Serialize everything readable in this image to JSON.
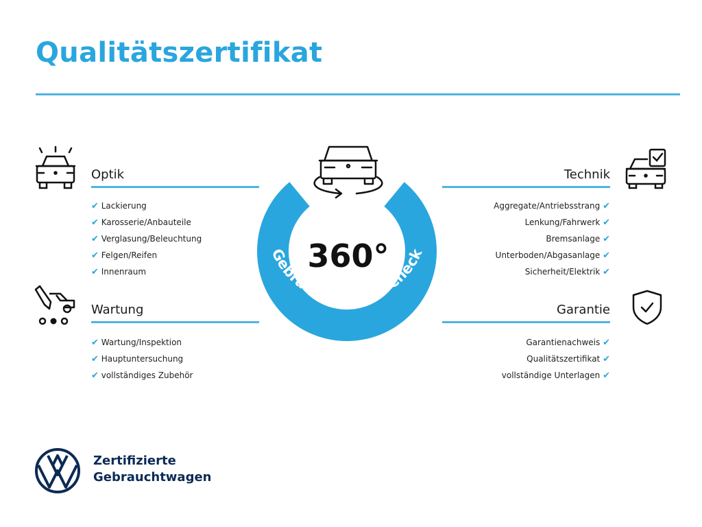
{
  "title": "Qualitätszertifikat",
  "colors": {
    "accent": "#2aa6de",
    "navy": "#0d2a55"
  },
  "center": {
    "number": "360°",
    "ring_text": "Gebrauchtwagen-Check",
    "icon": "car-rotate-icon"
  },
  "sections": {
    "optik": {
      "heading": "Optik",
      "icon": "car-lights-icon",
      "items": [
        "Lackierung",
        "Karosserie/Anbauteile",
        "Verglasung/Beleuchtung",
        "Felgen/Reifen",
        "Innenraum"
      ]
    },
    "wartung": {
      "heading": "Wartung",
      "icon": "service-tools-icon",
      "items": [
        "Wartung/Inspektion",
        "Hauptuntersuchung",
        "vollständiges Zubehör"
      ]
    },
    "technik": {
      "heading": "Technik",
      "icon": "car-checklist-icon",
      "items": [
        "Aggregate/Antriebsstrang",
        "Lenkung/Fahrwerk",
        "Bremsanlage",
        "Unterboden/Abgasanlage",
        "Sicherheit/Elektrik"
      ]
    },
    "garantie": {
      "heading": "Garantie",
      "icon": "shield-check-icon",
      "items": [
        "Garantienachweis",
        "Qualitätszertifikat",
        "vollständige Unterlagen"
      ]
    }
  },
  "check_mark": "✔",
  "footer": {
    "line1": "Zertifizierte",
    "line2": "Gebrauchtwagen",
    "logo": "vw-logo"
  }
}
